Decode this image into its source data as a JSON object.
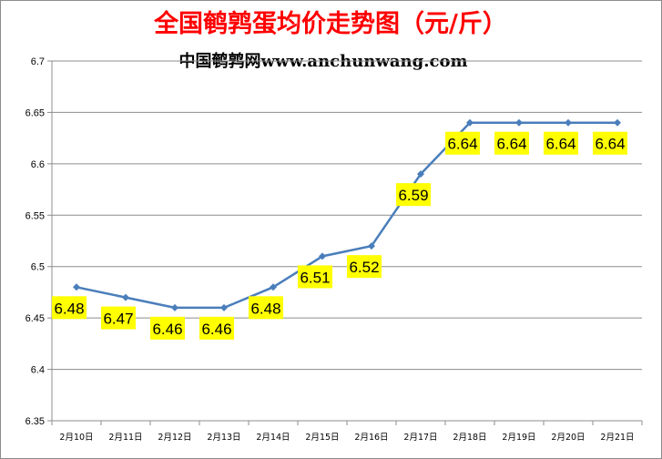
{
  "chart_data": {
    "type": "line",
    "title": "全国鹌鹑蛋均价走势图（元/斤）",
    "subtitle": "中国鹌鹑网www.anchunwang.com",
    "categories": [
      "2月10日",
      "2月11日",
      "2月12日",
      "2月13日",
      "2月14日",
      "2月15日",
      "2月16日",
      "2月17日",
      "2月18日",
      "2月19日",
      "2月20日",
      "2月21日"
    ],
    "series": [
      {
        "values": [
          6.48,
          6.47,
          6.46,
          6.46,
          6.48,
          6.51,
          6.52,
          6.59,
          6.64,
          6.64,
          6.64,
          6.64
        ]
      }
    ],
    "data_labels": [
      "6.48",
      "6.47",
      "6.46",
      "6.46",
      "6.48",
      "6.51",
      "6.52",
      "6.59",
      "6.64",
      "6.64",
      "6.64",
      "6.64"
    ],
    "y_ticks": [
      "6.35",
      "6.4",
      "6.45",
      "6.5",
      "6.55",
      "6.6",
      "6.65",
      "6.7"
    ],
    "ylim": [
      6.35,
      6.7
    ],
    "grid": true,
    "legend": "none",
    "colors": {
      "line": "#4a7ebb",
      "marker": "#4a7ebb",
      "title": "#ff0000",
      "label_bg": "#ffff00",
      "grid": "#8c8c8c"
    }
  }
}
